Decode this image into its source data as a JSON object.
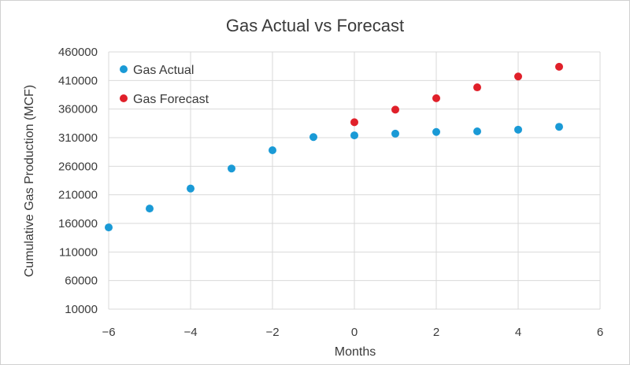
{
  "chart_data": {
    "type": "scatter",
    "title": "Gas Actual vs Forecast",
    "xlabel": "Months",
    "ylabel": "Cumulative Gas Production (MCF)",
    "xlim": [
      -6,
      6
    ],
    "ylim": [
      10000,
      460000
    ],
    "xticks": [
      -6,
      -4,
      -2,
      0,
      2,
      4,
      6
    ],
    "xtick_labels": [
      "−6",
      "−4",
      "−2",
      "0",
      "2",
      "4",
      "6"
    ],
    "yticks": [
      10000,
      60000,
      110000,
      160000,
      210000,
      260000,
      310000,
      360000,
      410000,
      460000
    ],
    "ytick_labels": [
      "10000",
      "60000",
      "110000",
      "160000",
      "210000",
      "260000",
      "310000",
      "360000",
      "410000",
      "460000"
    ],
    "grid": true,
    "legend_position": "top-left",
    "series": [
      {
        "name": "Gas Actual",
        "color": "#1a9ad6",
        "x": [
          -6,
          -5,
          -4,
          -3,
          -2,
          -1,
          0,
          1,
          2,
          3,
          4,
          5
        ],
        "y": [
          153000,
          186000,
          221000,
          256000,
          288000,
          311000,
          314000,
          317000,
          320000,
          321000,
          324000,
          329000
        ]
      },
      {
        "name": "Gas Forecast",
        "color": "#e0202a",
        "x": [
          0,
          1,
          2,
          3,
          4,
          5
        ],
        "y": [
          337000,
          359000,
          379000,
          398000,
          417000,
          434000
        ]
      }
    ]
  }
}
